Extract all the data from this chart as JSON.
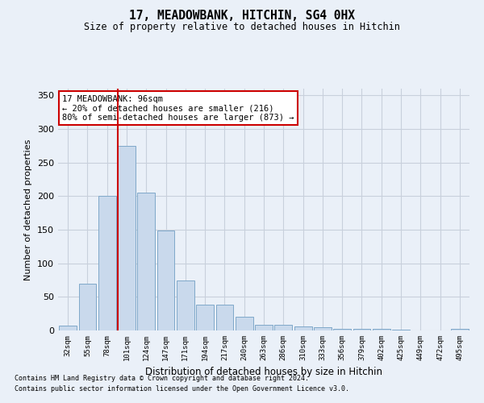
{
  "title": "17, MEADOWBANK, HITCHIN, SG4 0HX",
  "subtitle": "Size of property relative to detached houses in Hitchin",
  "xlabel": "Distribution of detached houses by size in Hitchin",
  "ylabel": "Number of detached properties",
  "categories": [
    "32sqm",
    "55sqm",
    "78sqm",
    "101sqm",
    "124sqm",
    "147sqm",
    "171sqm",
    "194sqm",
    "217sqm",
    "240sqm",
    "263sqm",
    "286sqm",
    "310sqm",
    "333sqm",
    "356sqm",
    "379sqm",
    "402sqm",
    "425sqm",
    "449sqm",
    "472sqm",
    "495sqm"
  ],
  "values": [
    7,
    70,
    201,
    275,
    205,
    149,
    74,
    39,
    39,
    20,
    8,
    8,
    6,
    5,
    3,
    2,
    2,
    1,
    0,
    0,
    2
  ],
  "bar_color": "#c9d9ec",
  "bar_edge_color": "#7fa8c9",
  "grid_color": "#c8d0dc",
  "background_color": "#eaf0f8",
  "vline_x_index": 3,
  "vline_color": "#cc0000",
  "annotation_text": "17 MEADOWBANK: 96sqm\n← 20% of detached houses are smaller (216)\n80% of semi-detached houses are larger (873) →",
  "annotation_box_color": "#ffffff",
  "annotation_box_edge_color": "#cc0000",
  "ylim": [
    0,
    360
  ],
  "yticks": [
    0,
    50,
    100,
    150,
    200,
    250,
    300,
    350
  ],
  "footer_line1": "Contains HM Land Registry data © Crown copyright and database right 2024.",
  "footer_line2": "Contains public sector information licensed under the Open Government Licence v3.0."
}
